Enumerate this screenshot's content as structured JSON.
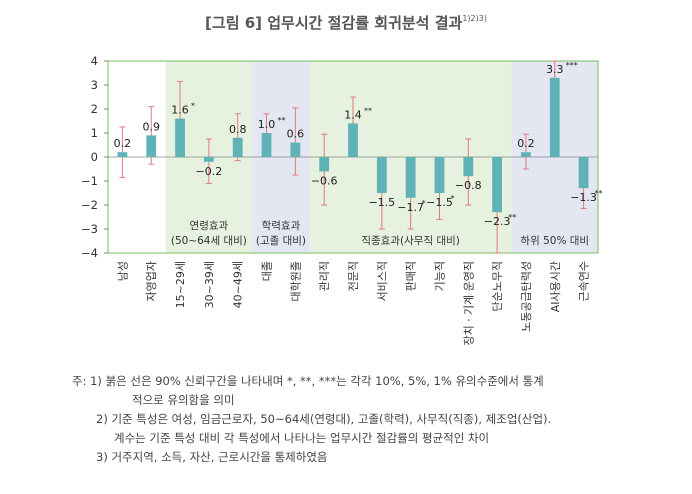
{
  "chart_data": {
    "type": "bar",
    "title": "[그림 6] 업무시간 절감률 회귀분석 결과",
    "title_superscript": "1)2)3)",
    "ylim": [
      -4,
      4
    ],
    "yticks": [
      4,
      3,
      2,
      1,
      0,
      -1,
      -2,
      -3,
      -4
    ],
    "grid": false,
    "categories": [
      "남성",
      "자영업자",
      "15~29세",
      "30~39세",
      "40~49세",
      "대졸",
      "대학원졸",
      "관리직",
      "전문직",
      "서비스직",
      "판매직",
      "기능직",
      "장치ㆍ기계 운영직",
      "단순노무직",
      "노동공급탄력성",
      "AI사용시간",
      "근속연수"
    ],
    "values": [
      0.2,
      0.9,
      1.6,
      -0.2,
      0.8,
      1.0,
      0.6,
      -0.6,
      1.4,
      -1.5,
      -1.7,
      -1.5,
      -0.8,
      -2.3,
      0.2,
      3.3,
      -1.3
    ],
    "value_labels": [
      "0.2",
      "0.9",
      "1.6",
      "−0.2",
      "0.8",
      "1.0",
      "0.6",
      "−0.6",
      "1.4",
      "−1.5",
      "−1.7",
      "−1.5",
      "−0.8",
      "−2.3",
      "0.2",
      "3.3",
      "−1.3"
    ],
    "significance": [
      "",
      "",
      "*",
      "",
      "",
      "**",
      "",
      "",
      "**",
      "",
      "*",
      "*",
      "",
      "**",
      "",
      "***",
      "**"
    ],
    "ci_low": [
      -0.85,
      -0.3,
      0.05,
      -1.1,
      -0.15,
      0.05,
      -0.75,
      -2.0,
      0.2,
      -3.0,
      -3.0,
      -2.6,
      -2.0,
      -4.0,
      -0.5,
      2.5,
      -2.15
    ],
    "ci_high": [
      1.25,
      2.1,
      3.15,
      0.75,
      1.8,
      1.8,
      2.05,
      0.95,
      2.5,
      0.0,
      -0.4,
      -0.35,
      0.75,
      -0.6,
      0.95,
      4.0,
      -0.45
    ],
    "groups": [
      {
        "label_line1": "",
        "label_line2": "",
        "start": 0,
        "end": 1,
        "shade": "none"
      },
      {
        "label_line1": "연령효과",
        "label_line2": "(50~64세 대비)",
        "start": 2,
        "end": 4,
        "shade": "green"
      },
      {
        "label_line1": "학력효과",
        "label_line2": "(고졸 대비)",
        "start": 5,
        "end": 6,
        "shade": "blue"
      },
      {
        "label_line1": "직종효과(사무직 대비)",
        "label_line2": "",
        "start": 7,
        "end": 13,
        "shade": "green"
      },
      {
        "label_line1": "하위 50% 대비",
        "label_line2": "",
        "start": 14,
        "end": 16,
        "shade": "blue"
      }
    ]
  },
  "colors": {
    "bar": "#5fb3b7",
    "error_bar": "#e07b7b",
    "green_shade": "#e6f1df",
    "blue_shade": "#e4e6f1",
    "frame": "#7dbb5c",
    "title": "#555555",
    "axis_text": "#333333"
  },
  "notes": {
    "n1_prefix": "주: 1)",
    "n1_a": "붉은 선은 90% 신뢰구간을 나타내며 *, **, ***는 각각 10%, 5%, 1% 유의수준에서 통계",
    "n1_b": "적으로 유의함을 의미",
    "n2_prefix": "2)",
    "n2_a": "기준 특성은 여성, 임금근로자, 50~64세(연령대), 고졸(학력), 사무직(직종), 제조업(산업).",
    "n2_b": "계수는 기준 특성 대비 각 특성에서 나타나는 업무시간 절감률의 평균적인 차이",
    "n3_prefix": "3)",
    "n3_a": "거주지역, 소득, 자산, 근로시간을 통제하였음"
  }
}
